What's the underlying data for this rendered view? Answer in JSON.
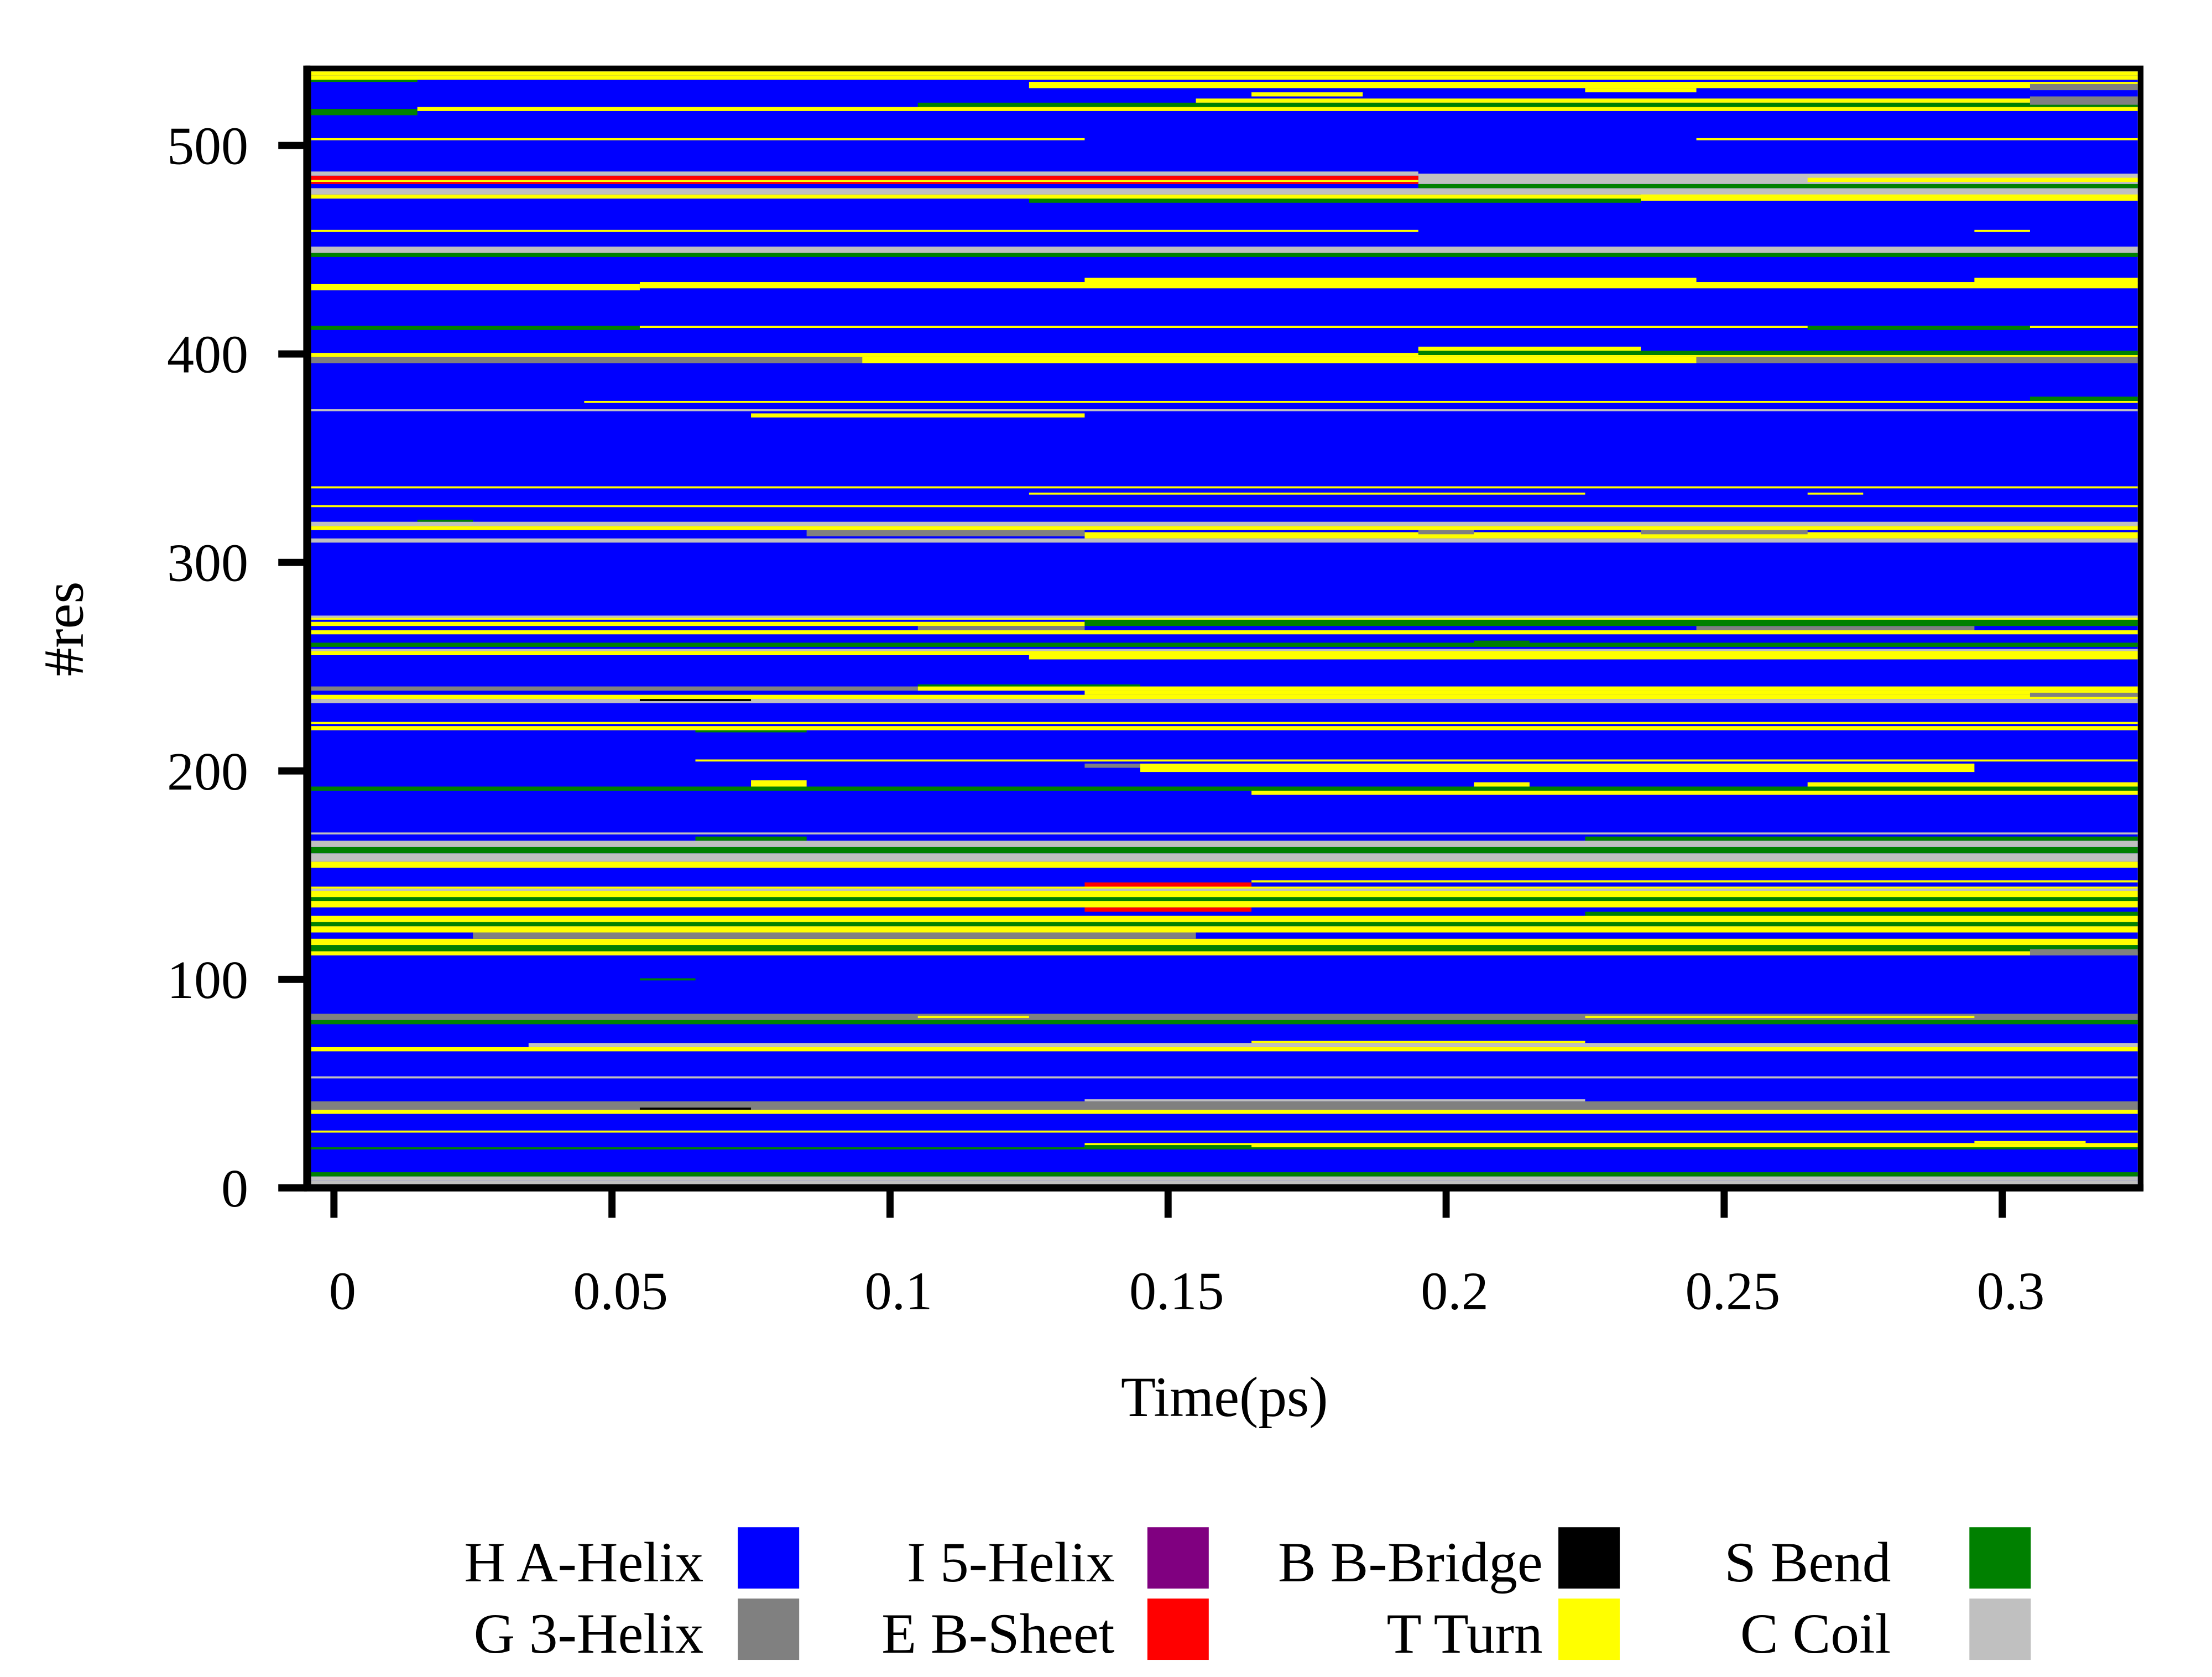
{
  "chart_data": {
    "type": "heatmap",
    "title": "",
    "xlabel": "Time(ps)",
    "ylabel": "#res",
    "xlim": [
      -0.005,
      0.325
    ],
    "ylim": [
      0,
      538
    ],
    "x_ticks": [
      "0",
      "0.05",
      "0.1",
      "0.15",
      "0.2",
      "0.25",
      "0.3"
    ],
    "x_tick_values": [
      0,
      0.05,
      0.1,
      0.15,
      0.2,
      0.25,
      0.3
    ],
    "y_ticks": [
      "0",
      "100",
      "200",
      "300",
      "400",
      "500"
    ],
    "y_tick_values": [
      0,
      100,
      200,
      300,
      400,
      500
    ],
    "legend_position": "bottom",
    "background_code": "H",
    "residue_range": [
      1,
      535
    ],
    "legend": [
      {
        "code": "H",
        "label": "H A-Helix",
        "color": "#0000ff"
      },
      {
        "code": "G",
        "label": "G 3-Helix",
        "color": "#808080"
      },
      {
        "code": "I",
        "label": "I 5-Helix",
        "color": "#800080"
      },
      {
        "code": "E",
        "label": "E B-Sheet",
        "color": "#ff0000"
      },
      {
        "code": "B",
        "label": "B B-Bridge",
        "color": "#000000"
      },
      {
        "code": "T",
        "label": "T Turn",
        "color": "#ffff00"
      },
      {
        "code": "S",
        "label": "S Bend",
        "color": "#008000"
      },
      {
        "code": "C",
        "label": "C Coil",
        "color": "#c0c0c0"
      }
    ],
    "segments": [
      [
        1,
        3,
        "C",
        -0.005,
        0.325
      ],
      [
        4,
        5,
        "C",
        -0.005,
        0.325
      ],
      [
        6,
        7,
        "S",
        -0.005,
        0.325
      ],
      [
        19,
        19,
        "S",
        -0.005,
        0.325
      ],
      [
        20,
        21,
        "T",
        0.135,
        0.325
      ],
      [
        20,
        20,
        "S",
        0.135,
        0.165
      ],
      [
        22,
        22,
        "T",
        0.295,
        0.315
      ],
      [
        27,
        27,
        "T",
        -0.005,
        0.325
      ],
      [
        36,
        37,
        "T",
        -0.005,
        0.325
      ],
      [
        38,
        41,
        "G",
        -0.005,
        0.325
      ],
      [
        42,
        42,
        "C",
        0.135,
        0.225
      ],
      [
        38,
        38,
        "B",
        0.055,
        0.075
      ],
      [
        53,
        53,
        "C",
        -0.005,
        0.325
      ],
      [
        66,
        67,
        "T",
        -0.005,
        0.325
      ],
      [
        68,
        69,
        "C",
        0.035,
        0.325
      ],
      [
        70,
        70,
        "T",
        0.165,
        0.225
      ],
      [
        79,
        80,
        "S",
        -0.005,
        0.325
      ],
      [
        81,
        83,
        "G",
        -0.005,
        0.325
      ],
      [
        82,
        82,
        "T",
        0.105,
        0.125
      ],
      [
        82,
        82,
        "T",
        0.225,
        0.295
      ],
      [
        100,
        100,
        "S",
        0.055,
        0.065
      ],
      [
        112,
        113,
        "T",
        -0.005,
        0.325
      ],
      [
        114,
        116,
        "S",
        -0.005,
        0.325
      ],
      [
        112,
        114,
        "G",
        0.305,
        0.325
      ],
      [
        117,
        119,
        "T",
        -0.005,
        0.325
      ],
      [
        120,
        122,
        "G",
        0.025,
        0.155
      ],
      [
        123,
        125,
        "T",
        -0.005,
        0.325
      ],
      [
        126,
        127,
        "S",
        -0.005,
        0.325
      ],
      [
        128,
        130,
        "T",
        -0.005,
        0.325
      ],
      [
        131,
        132,
        "S",
        0.225,
        0.325
      ],
      [
        133,
        134,
        "E",
        0.135,
        0.165
      ],
      [
        135,
        137,
        "T",
        -0.005,
        0.325
      ],
      [
        138,
        139,
        "S",
        -0.005,
        0.325
      ],
      [
        140,
        142,
        "T",
        -0.005,
        0.325
      ],
      [
        143,
        143,
        "C",
        -0.005,
        0.325
      ],
      [
        144,
        144,
        "T",
        -0.005,
        0.325
      ],
      [
        145,
        146,
        "E",
        0.135,
        0.165
      ],
      [
        147,
        147,
        "T",
        0.165,
        0.325
      ],
      [
        154,
        156,
        "T",
        -0.005,
        0.325
      ],
      [
        157,
        160,
        "C",
        -0.005,
        0.325
      ],
      [
        161,
        163,
        "S",
        -0.005,
        0.325
      ],
      [
        164,
        166,
        "C",
        -0.005,
        0.325
      ],
      [
        167,
        168,
        "S",
        0.065,
        0.085
      ],
      [
        167,
        168,
        "S",
        0.225,
        0.325
      ],
      [
        170,
        170,
        "C",
        -0.005,
        0.325
      ],
      [
        189,
        190,
        "T",
        0.165,
        0.325
      ],
      [
        191,
        192,
        "S",
        -0.005,
        0.325
      ],
      [
        193,
        195,
        "T",
        0.075,
        0.085
      ],
      [
        193,
        194,
        "T",
        0.205,
        0.215
      ],
      [
        193,
        194,
        "T",
        0.265,
        0.325
      ],
      [
        200,
        203,
        "T",
        0.145,
        0.295
      ],
      [
        202,
        203,
        "G",
        0.135,
        0.145
      ],
      [
        205,
        205,
        "T",
        0.065,
        0.325
      ],
      [
        219,
        219,
        "S",
        0.065,
        0.085
      ],
      [
        220,
        221,
        "T",
        -0.005,
        0.325
      ],
      [
        223,
        223,
        "T",
        -0.005,
        0.325
      ],
      [
        233,
        234,
        "C",
        -0.005,
        0.325
      ],
      [
        235,
        236,
        "T",
        -0.005,
        0.325
      ],
      [
        237,
        238,
        "T",
        0.135,
        0.325
      ],
      [
        239,
        240,
        "G",
        -0.005,
        0.105
      ],
      [
        239,
        240,
        "T",
        0.105,
        0.325
      ],
      [
        234,
        234,
        "B",
        0.055,
        0.075
      ],
      [
        236,
        237,
        "G",
        0.305,
        0.325
      ],
      [
        241,
        241,
        "S",
        0.105,
        0.145
      ],
      [
        254,
        255,
        "T",
        0.125,
        0.325
      ],
      [
        256,
        257,
        "T",
        -0.005,
        0.325
      ],
      [
        258,
        258,
        "C",
        -0.005,
        0.325
      ],
      [
        260,
        261,
        "S",
        -0.005,
        0.325
      ],
      [
        262,
        262,
        "S",
        0.205,
        0.215
      ],
      [
        266,
        267,
        "T",
        -0.005,
        0.325
      ],
      [
        268,
        269,
        "G",
        0.105,
        0.135
      ],
      [
        268,
        269,
        "G",
        0.245,
        0.295
      ],
      [
        270,
        271,
        "T",
        -0.005,
        0.135
      ],
      [
        270,
        272,
        "S",
        0.135,
        0.325
      ],
      [
        273,
        273,
        "T",
        -0.005,
        0.325
      ],
      [
        274,
        274,
        "C",
        -0.005,
        0.325
      ],
      [
        310,
        311,
        "C",
        -0.005,
        0.325
      ],
      [
        312,
        314,
        "T",
        0.135,
        0.325
      ],
      [
        313,
        315,
        "G",
        0.085,
        0.135
      ],
      [
        314,
        315,
        "G",
        0.195,
        0.205
      ],
      [
        314,
        315,
        "G",
        0.235,
        0.265
      ],
      [
        316,
        317,
        "T",
        -0.005,
        0.325
      ],
      [
        318,
        319,
        "C",
        -0.005,
        0.325
      ],
      [
        320,
        320,
        "S",
        0.015,
        0.025
      ],
      [
        327,
        327,
        "T",
        -0.005,
        0.325
      ],
      [
        333,
        333,
        "T",
        0.125,
        0.225
      ],
      [
        333,
        333,
        "T",
        0.265,
        0.275
      ],
      [
        336,
        336,
        "T",
        -0.005,
        0.325
      ],
      [
        370,
        371,
        "T",
        0.075,
        0.135
      ],
      [
        373,
        373,
        "C",
        -0.005,
        0.325
      ],
      [
        377,
        377,
        "T",
        0.045,
        0.325
      ],
      [
        378,
        379,
        "S",
        0.305,
        0.325
      ],
      [
        396,
        398,
        "G",
        -0.005,
        0.095
      ],
      [
        396,
        398,
        "T",
        0.095,
        0.245
      ],
      [
        396,
        398,
        "G",
        0.245,
        0.325
      ],
      [
        399,
        400,
        "T",
        -0.005,
        0.325
      ],
      [
        400,
        401,
        "S",
        0.195,
        0.325
      ],
      [
        402,
        403,
        "T",
        0.195,
        0.235
      ],
      [
        412,
        413,
        "S",
        -0.005,
        0.055
      ],
      [
        413,
        413,
        "T",
        0.055,
        0.325
      ],
      [
        412,
        413,
        "S",
        0.265,
        0.305
      ],
      [
        431,
        433,
        "T",
        -0.005,
        0.055
      ],
      [
        432,
        434,
        "T",
        0.055,
        0.325
      ],
      [
        434,
        436,
        "T",
        0.135,
        0.245
      ],
      [
        434,
        436,
        "T",
        0.295,
        0.325
      ],
      [
        447,
        448,
        "S",
        -0.005,
        0.325
      ],
      [
        449,
        451,
        "C",
        -0.005,
        0.325
      ],
      [
        459,
        459,
        "T",
        -0.005,
        0.195
      ],
      [
        459,
        459,
        "T",
        0.295,
        0.305
      ],
      [
        473,
        475,
        "S",
        0.125,
        0.235
      ],
      [
        475,
        476,
        "T",
        -0.005,
        0.235
      ],
      [
        474,
        477,
        "T",
        0.235,
        0.325
      ],
      [
        477,
        479,
        "C",
        -0.005,
        0.325
      ],
      [
        480,
        481,
        "S",
        0.195,
        0.325
      ],
      [
        482,
        486,
        "C",
        0.195,
        0.325
      ],
      [
        482,
        482,
        "E",
        -0.005,
        0.195
      ],
      [
        483,
        483,
        "T",
        -0.005,
        0.195
      ],
      [
        484,
        485,
        "E",
        -0.005,
        0.195
      ],
      [
        486,
        487,
        "C",
        -0.005,
        0.195
      ],
      [
        483,
        484,
        "T",
        0.265,
        0.325
      ],
      [
        503,
        503,
        "T",
        -0.005,
        0.135
      ],
      [
        503,
        503,
        "T",
        0.245,
        0.325
      ],
      [
        515,
        517,
        "S",
        -0.005,
        0.015
      ],
      [
        517,
        518,
        "T",
        0.015,
        0.325
      ],
      [
        519,
        520,
        "S",
        0.105,
        0.325
      ],
      [
        521,
        522,
        "T",
        0.155,
        0.325
      ],
      [
        520,
        523,
        "G",
        0.305,
        0.325
      ],
      [
        524,
        525,
        "T",
        0.165,
        0.185
      ],
      [
        526,
        527,
        "T",
        0.225,
        0.245
      ],
      [
        528,
        530,
        "T",
        0.125,
        0.325
      ],
      [
        527,
        529,
        "G",
        0.305,
        0.325
      ],
      [
        531,
        532,
        "S",
        -0.005,
        0.015
      ],
      [
        532,
        533,
        "T",
        -0.005,
        0.325
      ],
      [
        534,
        535,
        "T",
        -0.005,
        0.325
      ]
    ]
  }
}
